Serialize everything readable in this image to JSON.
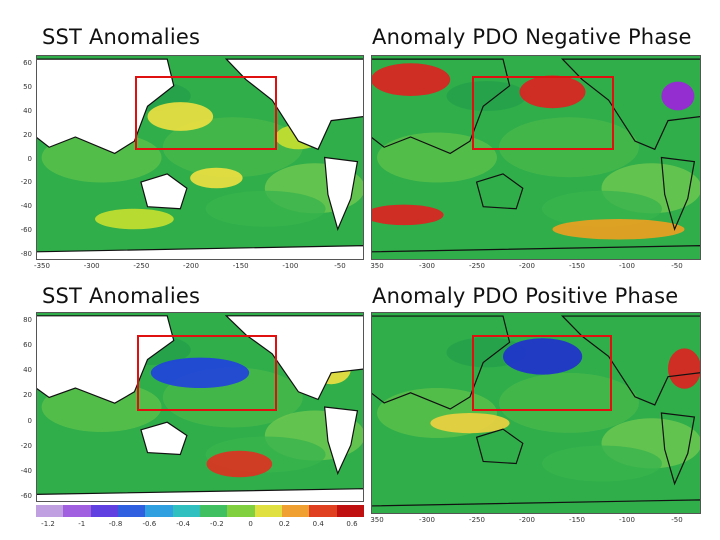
{
  "panels": [
    {
      "title": "SST Anomalies",
      "y_ticks": [
        "60",
        "50",
        "40",
        "20",
        "0",
        "-20",
        "-40",
        "-60",
        "-80"
      ],
      "x_ticks": [
        "-350",
        "-300",
        "-250",
        "-200",
        "-150",
        "-100",
        "-50"
      ],
      "hotspots": [
        {
          "color": "#f0e040",
          "kind": "warm"
        },
        {
          "color": "#f0e040",
          "kind": "warm"
        },
        {
          "color": "#c8e030",
          "kind": "warm"
        },
        {
          "color": "#c8e030",
          "kind": "warm"
        }
      ]
    },
    {
      "title": "Anomaly PDO Negative Phase",
      "y_ticks": [],
      "x_ticks": [
        "350",
        "-300",
        "-250",
        "-200",
        "-150",
        "-100",
        "-50"
      ],
      "hotspots": [
        {
          "color": "#e02020",
          "kind": "warm"
        },
        {
          "color": "#e02020",
          "kind": "warm"
        },
        {
          "color": "#a020e0",
          "kind": "cold"
        },
        {
          "color": "#e02020",
          "kind": "warm"
        },
        {
          "color": "#f0a020",
          "kind": "warm"
        }
      ]
    },
    {
      "title": "SST Anomalies",
      "y_ticks": [
        "80",
        "60",
        "40",
        "20",
        "0",
        "-20",
        "-40",
        "-60"
      ],
      "x_ticks": [],
      "hotspots": [
        {
          "color": "#2040e0",
          "kind": "cold"
        },
        {
          "color": "#e03020",
          "kind": "warm"
        },
        {
          "color": "#f0e040",
          "kind": "warm"
        }
      ]
    },
    {
      "title": "Anomaly PDO Positive Phase",
      "y_ticks": [],
      "x_ticks": [
        "350",
        "-300",
        "-250",
        "-200",
        "-150",
        "-100",
        "-50"
      ],
      "hotspots": [
        {
          "color": "#2030d0",
          "kind": "cold"
        },
        {
          "color": "#e02020",
          "kind": "warm"
        },
        {
          "color": "#f0d040",
          "kind": "warm"
        }
      ]
    }
  ],
  "colorbar": {
    "labels": [
      "-1.2",
      "-1",
      "-0.8",
      "-0.6",
      "-0.4",
      "-0.2",
      "0",
      "0.2",
      "0.4",
      "0.6"
    ],
    "colors": [
      "#c0a0e0",
      "#a060e0",
      "#6040e0",
      "#3060e0",
      "#30a0e0",
      "#30c0c0",
      "#40c060",
      "#80d040",
      "#e0e040",
      "#f0a030",
      "#e04020",
      "#c01010"
    ]
  },
  "highlight_color": "#e01010"
}
